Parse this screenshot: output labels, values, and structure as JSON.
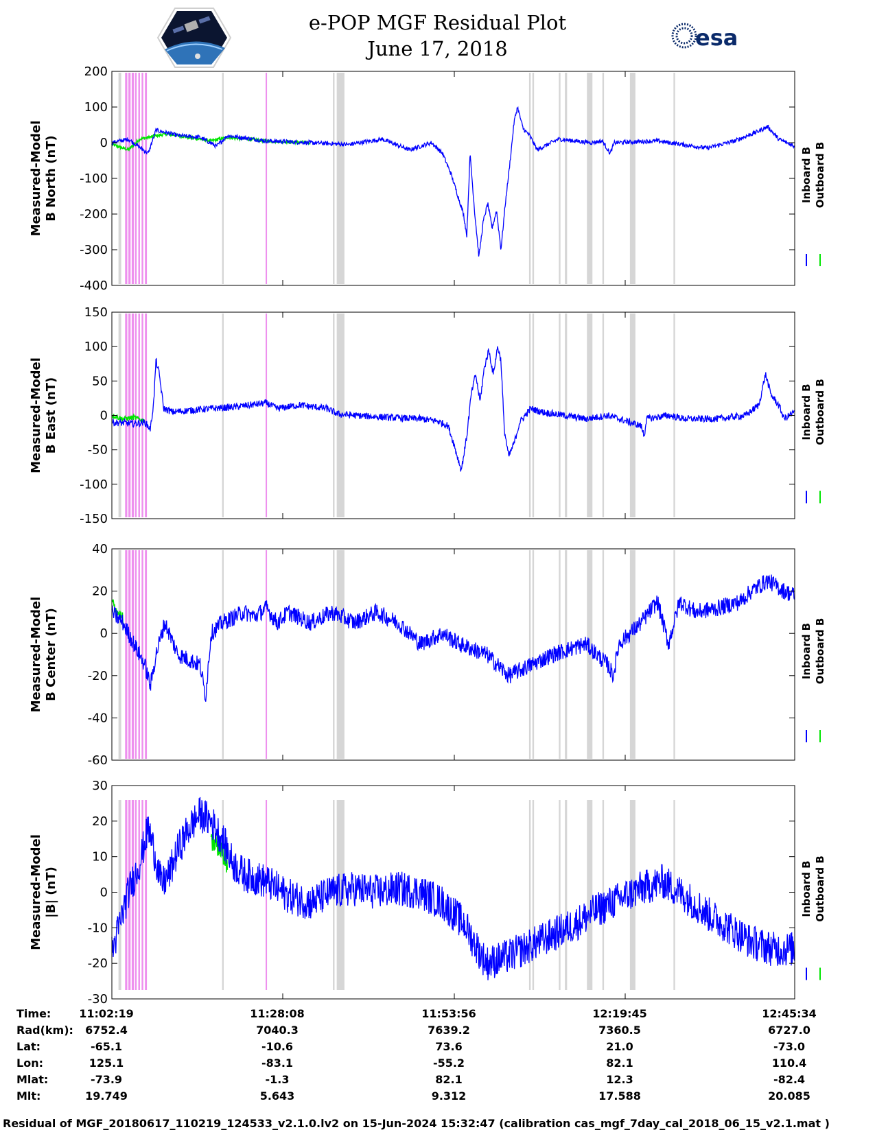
{
  "title": "e-POP MGF Residual Plot",
  "subtitle": "June 17, 2018",
  "logos": {
    "left": "cassiope-satellite-logo",
    "right": "esa-logo",
    "right_text": "esa"
  },
  "colors": {
    "inboard": "#0000ff",
    "outboard": "#00e600",
    "gray_band": "#d6d6d6",
    "pink_band": "#ee90ee"
  },
  "chart_data": [
    {
      "type": "line",
      "ylabel": [
        "Measured-Model",
        "B North (nT)"
      ],
      "ylim": [
        -400,
        200
      ],
      "yticks": [
        200,
        100,
        0,
        -100,
        -200,
        -300,
        -400
      ],
      "xlim": [
        0,
        6195
      ],
      "legend": [
        "Inboard B",
        "Outboard B"
      ],
      "legend_placement": "right",
      "series": [
        {
          "name": "Inboard B",
          "points": [
            [
              0,
              0
            ],
            [
              150,
              10
            ],
            [
              330,
              -30
            ],
            [
              400,
              35
            ],
            [
              600,
              20
            ],
            [
              800,
              15
            ],
            [
              950,
              -10
            ],
            [
              1050,
              20
            ],
            [
              1400,
              5
            ],
            [
              1800,
              0
            ],
            [
              2150,
              -5
            ],
            [
              2450,
              10
            ],
            [
              2700,
              -20
            ],
            [
              2900,
              0
            ],
            [
              3000,
              -30
            ],
            [
              3080,
              -90
            ],
            [
              3140,
              -150
            ],
            [
              3190,
              -200
            ],
            [
              3220,
              -260
            ],
            [
              3250,
              -30
            ],
            [
              3290,
              -190
            ],
            [
              3330,
              -320
            ],
            [
              3370,
              -220
            ],
            [
              3410,
              -170
            ],
            [
              3450,
              -240
            ],
            [
              3490,
              -190
            ],
            [
              3530,
              -300
            ],
            [
              3570,
              -170
            ],
            [
              3610,
              -60
            ],
            [
              3650,
              60
            ],
            [
              3680,
              100
            ],
            [
              3730,
              40
            ],
            [
              3790,
              20
            ],
            [
              3860,
              -20
            ],
            [
              4050,
              10
            ],
            [
              4350,
              0
            ],
            [
              4450,
              5
            ],
            [
              4520,
              -30
            ],
            [
              4560,
              0
            ],
            [
              4950,
              5
            ],
            [
              5400,
              -15
            ],
            [
              5650,
              5
            ],
            [
              5850,
              30
            ],
            [
              5950,
              45
            ],
            [
              6050,
              10
            ],
            [
              6195,
              -10
            ]
          ]
        },
        {
          "name": "Outboard B",
          "points": [
            [
              0,
              -5
            ],
            [
              150,
              -20
            ],
            [
              250,
              10
            ],
            [
              500,
              25
            ],
            [
              900,
              5
            ],
            [
              1050,
              15
            ],
            [
              1400,
              5
            ],
            [
              1800,
              0
            ]
          ]
        }
      ]
    },
    {
      "type": "line",
      "ylabel": [
        "Measured-Model",
        "B East (nT)"
      ],
      "ylim": [
        -150,
        150
      ],
      "yticks": [
        150,
        100,
        50,
        0,
        -50,
        -100,
        -150
      ],
      "xlim": [
        0,
        6195
      ],
      "legend": [
        "Inboard B",
        "Outboard B"
      ],
      "legend_placement": "right",
      "series": [
        {
          "name": "Inboard B",
          "points": [
            [
              0,
              -10
            ],
            [
              200,
              -12
            ],
            [
              300,
              -10
            ],
            [
              350,
              -20
            ],
            [
              380,
              20
            ],
            [
              400,
              80
            ],
            [
              430,
              60
            ],
            [
              470,
              10
            ],
            [
              550,
              5
            ],
            [
              900,
              10
            ],
            [
              1100,
              12
            ],
            [
              1400,
              18
            ],
            [
              1500,
              10
            ],
            [
              1700,
              15
            ],
            [
              1950,
              10
            ],
            [
              2050,
              2
            ],
            [
              2200,
              0
            ],
            [
              2500,
              -3
            ],
            [
              2800,
              -5
            ],
            [
              2950,
              -8
            ],
            [
              3050,
              -15
            ],
            [
              3100,
              -40
            ],
            [
              3170,
              -80
            ],
            [
              3220,
              -30
            ],
            [
              3260,
              30
            ],
            [
              3300,
              60
            ],
            [
              3340,
              20
            ],
            [
              3380,
              70
            ],
            [
              3420,
              95
            ],
            [
              3460,
              60
            ],
            [
              3500,
              100
            ],
            [
              3530,
              80
            ],
            [
              3560,
              -20
            ],
            [
              3600,
              -60
            ],
            [
              3650,
              -40
            ],
            [
              3700,
              -10
            ],
            [
              3800,
              10
            ],
            [
              3900,
              5
            ],
            [
              4100,
              0
            ],
            [
              4300,
              -5
            ],
            [
              4500,
              0
            ],
            [
              4800,
              -15
            ],
            [
              4830,
              -30
            ],
            [
              4850,
              -5
            ],
            [
              5050,
              0
            ],
            [
              5200,
              -5
            ],
            [
              5500,
              -5
            ],
            [
              5750,
              0
            ],
            [
              5870,
              15
            ],
            [
              5930,
              60
            ],
            [
              5980,
              30
            ],
            [
              6050,
              15
            ],
            [
              6100,
              -5
            ],
            [
              6195,
              5
            ]
          ]
        },
        {
          "name": "Outboard B",
          "points": [
            [
              0,
              0
            ],
            [
              100,
              -5
            ],
            [
              200,
              -3
            ],
            [
              300,
              -8
            ]
          ]
        }
      ]
    },
    {
      "type": "line",
      "ylabel": [
        "Measured-Model",
        "B Center (nT)"
      ],
      "ylim": [
        -60,
        40
      ],
      "yticks": [
        40,
        20,
        0,
        -20,
        -40,
        -60
      ],
      "xlim": [
        0,
        6195
      ],
      "legend": [
        "Inboard B",
        "Outboard B"
      ],
      "legend_placement": "right",
      "series": [
        {
          "name": "Inboard B",
          "points": [
            [
              0,
              10
            ],
            [
              100,
              5
            ],
            [
              200,
              -5
            ],
            [
              300,
              -15
            ],
            [
              350,
              -25
            ],
            [
              400,
              -10
            ],
            [
              480,
              5
            ],
            [
              600,
              -10
            ],
            [
              800,
              -15
            ],
            [
              850,
              -30
            ],
            [
              900,
              0
            ],
            [
              1000,
              5
            ],
            [
              1200,
              10
            ],
            [
              1300,
              8
            ],
            [
              1400,
              12
            ],
            [
              1500,
              5
            ],
            [
              1600,
              10
            ],
            [
              1800,
              5
            ],
            [
              2000,
              10
            ],
            [
              2200,
              5
            ],
            [
              2400,
              10
            ],
            [
              2600,
              5
            ],
            [
              2800,
              -5
            ],
            [
              3000,
              0
            ],
            [
              3150,
              -5
            ],
            [
              3300,
              -8
            ],
            [
              3400,
              -10
            ],
            [
              3500,
              -15
            ],
            [
              3600,
              -20
            ],
            [
              3800,
              -15
            ],
            [
              4000,
              -10
            ],
            [
              4300,
              -5
            ],
            [
              4500,
              -15
            ],
            [
              4550,
              -20
            ],
            [
              4600,
              -5
            ],
            [
              4800,
              5
            ],
            [
              4950,
              15
            ],
            [
              5000,
              5
            ],
            [
              5050,
              -5
            ],
            [
              5150,
              15
            ],
            [
              5300,
              10
            ],
            [
              5500,
              12
            ],
            [
              5700,
              15
            ],
            [
              5800,
              20
            ],
            [
              5950,
              25
            ],
            [
              6100,
              20
            ],
            [
              6195,
              18
            ]
          ]
        },
        {
          "name": "Outboard B",
          "points": [
            [
              0,
              15
            ],
            [
              50,
              10
            ],
            [
              100,
              7
            ]
          ]
        }
      ]
    },
    {
      "type": "line",
      "ylabel": [
        "Measured-Model",
        "|B| (nT)"
      ],
      "ylim": [
        -30,
        30
      ],
      "yticks": [
        30,
        20,
        10,
        0,
        -10,
        -20,
        -30
      ],
      "xlim": [
        0,
        6195
      ],
      "legend": [
        "Inboard B",
        "Outboard B"
      ],
      "legend_placement": "right",
      "series": [
        {
          "name": "Inboard B",
          "points": [
            [
              0,
              -17
            ],
            [
              80,
              -8
            ],
            [
              150,
              0
            ],
            [
              250,
              8
            ],
            [
              330,
              18
            ],
            [
              380,
              12
            ],
            [
              450,
              2
            ],
            [
              520,
              5
            ],
            [
              600,
              12
            ],
            [
              700,
              18
            ],
            [
              800,
              22
            ],
            [
              900,
              20
            ],
            [
              1000,
              15
            ],
            [
              1100,
              8
            ],
            [
              1200,
              5
            ],
            [
              1400,
              3
            ],
            [
              1600,
              -1
            ],
            [
              1800,
              -3
            ],
            [
              2000,
              0
            ],
            [
              2200,
              1
            ],
            [
              2400,
              0
            ],
            [
              2600,
              1
            ],
            [
              2800,
              0
            ],
            [
              3000,
              -3
            ],
            [
              3200,
              -9
            ],
            [
              3300,
              -15
            ],
            [
              3400,
              -20
            ],
            [
              3600,
              -18
            ],
            [
              3800,
              -15
            ],
            [
              4000,
              -12
            ],
            [
              4200,
              -9
            ],
            [
              4400,
              -5
            ],
            [
              4600,
              -2
            ],
            [
              4800,
              1
            ],
            [
              5000,
              3
            ],
            [
              5200,
              -1
            ],
            [
              5400,
              -6
            ],
            [
              5600,
              -10
            ],
            [
              5800,
              -14
            ],
            [
              6000,
              -16
            ],
            [
              6195,
              -16
            ]
          ]
        },
        {
          "name": "Outboard B",
          "points": [
            [
              900,
              15
            ],
            [
              1000,
              12
            ],
            [
              1050,
              8
            ]
          ]
        }
      ]
    }
  ],
  "bands": {
    "gray": [
      [
        60,
        85
      ],
      [
        1000,
        1015
      ],
      [
        2005,
        2020
      ],
      [
        2040,
        2110
      ],
      [
        3785,
        3800
      ],
      [
        3815,
        3830
      ],
      [
        4055,
        4070
      ],
      [
        4110,
        4130
      ],
      [
        4310,
        4360
      ],
      [
        4450,
        4465
      ],
      [
        4700,
        4750
      ],
      [
        5095,
        5110
      ]
    ],
    "pink": [
      [
        120,
        140
      ],
      [
        150,
        170
      ],
      [
        180,
        200
      ],
      [
        210,
        225
      ],
      [
        240,
        255
      ],
      [
        270,
        285
      ],
      [
        300,
        318
      ],
      [
        1395,
        1405
      ]
    ]
  },
  "orbit_table": {
    "labels": [
      "Time:",
      "Rad(km):",
      "Lat:",
      "Lon:",
      "Mlat:",
      "Mlt:"
    ],
    "columns": [
      [
        "11:02:19",
        "6752.4",
        "-65.1",
        "125.1",
        "-73.9",
        "19.749"
      ],
      [
        "11:28:08",
        "7040.3",
        "-10.6",
        "-83.1",
        "-1.3",
        "5.643"
      ],
      [
        "11:53:56",
        "7639.2",
        "73.6",
        "-55.2",
        "82.1",
        "9.312"
      ],
      [
        "12:19:45",
        "7360.5",
        "21.0",
        "82.1",
        "12.3",
        "17.588"
      ],
      [
        "12:45:34",
        "6727.0",
        "-73.0",
        "110.4",
        "-82.4",
        "20.085"
      ]
    ]
  },
  "footer": "Residual of MGF_20180617_110219_124533_v2.1.0.lv2 on 15-Jun-2024 15:32:47 (calibration cas_mgf_7day_cal_2018_06_15_v2.1.mat )"
}
